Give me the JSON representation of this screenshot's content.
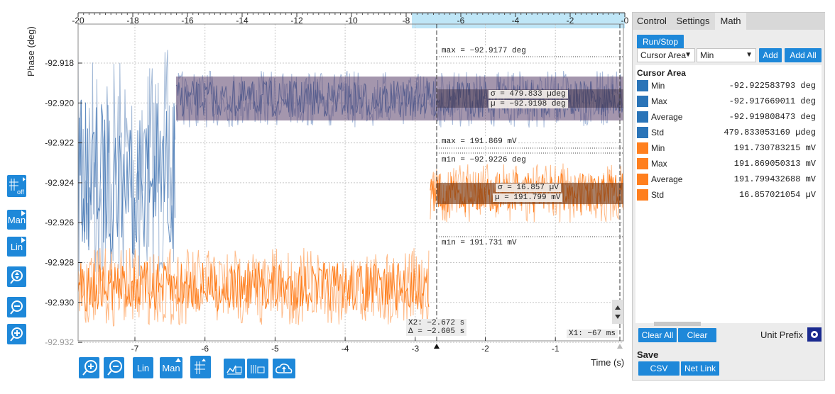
{
  "plot": {
    "ylabel": "Phase (deg)",
    "xlabel": "Time (s)",
    "top_ticks": [
      "-20",
      "-18",
      "-16",
      "-14",
      "-12",
      "-10",
      "-8",
      "-6",
      "-4",
      "-2",
      "-0"
    ],
    "y_ticks": [
      "-92.918",
      "-92.920",
      "-92.922",
      "-92.924",
      "-92.926",
      "-92.928",
      "-92.930",
      "-92.932"
    ],
    "x_ticks": [
      "-7",
      "-6",
      "-5",
      "-4",
      "-3",
      "-2",
      "-1"
    ],
    "colors": {
      "series1": "#3a6fb0",
      "series2": "#ff7f1e",
      "band1": "#7a6a95",
      "band2": "#c65a1a",
      "accent": "#1e88d9"
    },
    "annotations": {
      "max1": "max = −92.9177 deg",
      "sigma1": "σ = 479.833 µdeg",
      "mu1": "µ = −92.9198 deg",
      "max2": "max = 191.869 mV",
      "min1": "min = −92.9226 deg",
      "sigma2": "σ = 16.857 µV",
      "mu2": "µ = 191.799 mV",
      "min2": "min = 191.731 mV",
      "x2": "X2: −2.672 s",
      "delta": "Δ = −2.605 s",
      "x1": "X1: −67 ms"
    }
  },
  "left_toolbar": {
    "off_label": "off",
    "man_label": "Man",
    "lin_label": "Lin"
  },
  "bottom_toolbar": {
    "lin_label": "Lin",
    "man_label": "Man"
  },
  "panel": {
    "tabs": [
      "Control",
      "Settings",
      "Math"
    ],
    "active_tab": "Math",
    "run_stop": "Run/Stop",
    "select1": "Cursor Area",
    "select2": "Min",
    "add": "Add",
    "add_all": "Add All",
    "section": "Cursor Area",
    "rows": [
      {
        "name": "Min",
        "value": "-92.922583793 deg",
        "color": "#2a74b8"
      },
      {
        "name": "Max",
        "value": "-92.917669011 deg",
        "color": "#2a74b8"
      },
      {
        "name": "Average",
        "value": "-92.919808473 deg",
        "color": "#2a74b8"
      },
      {
        "name": "Std",
        "value": "479.833053169 µdeg",
        "color": "#2a74b8"
      },
      {
        "name": "Min",
        "value": "191.730783215 mV",
        "color": "#ff7f1e"
      },
      {
        "name": "Max",
        "value": "191.869050313 mV",
        "color": "#ff7f1e"
      },
      {
        "name": "Average",
        "value": "191.799432688 mV",
        "color": "#ff7f1e"
      },
      {
        "name": "Std",
        "value": "16.857021054 µV",
        "color": "#ff7f1e"
      }
    ],
    "clear_all": "Clear All",
    "clear": "Clear",
    "unit_prefix": "Unit Prefix",
    "save": "Save",
    "csv": "CSV",
    "net_link": "Net Link"
  }
}
